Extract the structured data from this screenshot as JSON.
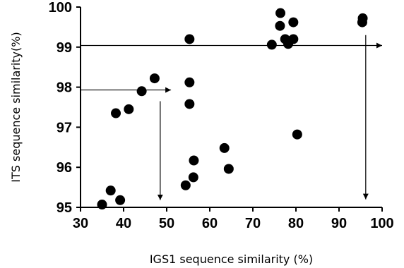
{
  "chart_data": {
    "type": "scatter",
    "title": "",
    "xlabel": "IGS1 sequence similarity (%)",
    "ylabel": "ITS sequence similarity(%)",
    "xlim": [
      30,
      100
    ],
    "ylim": [
      95,
      100
    ],
    "xticks": [
      30,
      40,
      50,
      60,
      70,
      80,
      90,
      100
    ],
    "yticks": [
      95,
      96,
      97,
      98,
      99,
      100
    ],
    "grid": false,
    "legend": "none",
    "series": [
      {
        "x": [
          35.0,
          37.0,
          39.2,
          38.2,
          41.2,
          44.2,
          47.2,
          54.4,
          55.3,
          55.3,
          55.3,
          56.2,
          56.3,
          63.4,
          64.4,
          74.4,
          76.3,
          76.4,
          77.5,
          78.2,
          78.4,
          79.4,
          79.4,
          80.3,
          95.4,
          95.5
        ],
        "y": [
          95.07,
          95.42,
          95.18,
          97.35,
          97.45,
          97.9,
          98.22,
          95.55,
          97.58,
          98.12,
          99.2,
          95.75,
          96.17,
          96.48,
          95.96,
          99.06,
          99.53,
          99.85,
          99.2,
          99.08,
          99.15,
          99.2,
          99.62,
          96.82,
          99.62,
          99.72
        ]
      }
    ],
    "annotations": [
      {
        "type": "arrow",
        "from": [
          30,
          97.93
        ],
        "to": [
          51,
          97.93
        ]
      },
      {
        "type": "arrow",
        "from": [
          48.5,
          97.65
        ],
        "to": [
          48.5,
          95.18
        ]
      },
      {
        "type": "arrow",
        "from": [
          30,
          99.04
        ],
        "to": [
          100,
          99.04
        ]
      },
      {
        "type": "arrow",
        "from": [
          96.2,
          99.3
        ],
        "to": [
          96.2,
          95.2
        ]
      }
    ],
    "colors": {
      "marker": "#000000",
      "axis": "#000000"
    }
  }
}
